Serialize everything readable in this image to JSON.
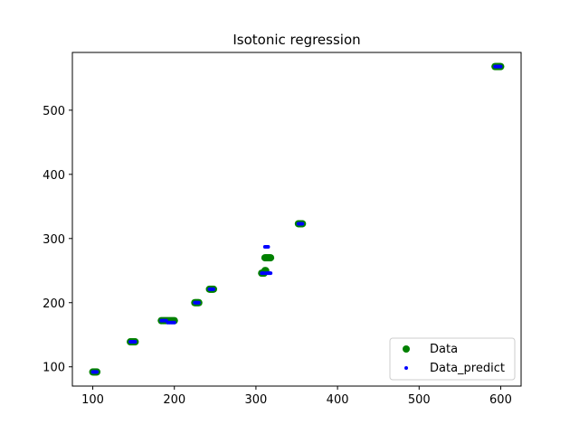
{
  "chart_data": {
    "type": "scatter",
    "title": "Isotonic regression",
    "xlabel": "",
    "ylabel": "",
    "xlim": [
      75,
      625
    ],
    "ylim": [
      70,
      590
    ],
    "x_ticks": [
      100,
      200,
      300,
      400,
      500,
      600
    ],
    "y_ticks": [
      100,
      200,
      300,
      400,
      500
    ],
    "grid": false,
    "legend_position": "bottom-right",
    "series": [
      {
        "name": "Data",
        "color": "#008000",
        "marker": "large-circle",
        "points": [
          [
            100,
            92
          ],
          [
            101,
            92
          ],
          [
            102,
            92
          ],
          [
            103,
            92
          ],
          [
            104,
            92
          ],
          [
            105,
            92
          ],
          [
            146,
            139
          ],
          [
            147,
            139
          ],
          [
            148,
            139
          ],
          [
            149,
            139
          ],
          [
            150,
            139
          ],
          [
            151,
            139
          ],
          [
            152,
            139
          ],
          [
            184,
            172
          ],
          [
            186,
            172
          ],
          [
            188,
            172
          ],
          [
            190,
            172
          ],
          [
            192,
            172
          ],
          [
            194,
            172
          ],
          [
            196,
            172
          ],
          [
            198,
            172
          ],
          [
            200,
            172
          ],
          [
            225,
            200
          ],
          [
            226,
            200
          ],
          [
            227,
            200
          ],
          [
            228,
            200
          ],
          [
            229,
            200
          ],
          [
            230,
            200
          ],
          [
            243,
            221
          ],
          [
            244,
            221
          ],
          [
            245,
            221
          ],
          [
            246,
            221
          ],
          [
            247,
            221
          ],
          [
            248,
            221
          ],
          [
            307,
            246
          ],
          [
            308,
            246
          ],
          [
            309,
            246
          ],
          [
            310,
            246
          ],
          [
            311,
            250
          ],
          [
            312,
            250
          ],
          [
            311,
            270
          ],
          [
            312,
            270
          ],
          [
            313,
            270
          ],
          [
            314,
            270
          ],
          [
            315,
            270
          ],
          [
            316,
            270
          ],
          [
            317,
            270
          ],
          [
            318,
            270
          ],
          [
            352,
            323
          ],
          [
            353,
            323
          ],
          [
            354,
            323
          ],
          [
            355,
            323
          ],
          [
            356,
            323
          ],
          [
            357,
            323
          ],
          [
            593,
            568
          ],
          [
            594,
            568
          ],
          [
            595,
            568
          ],
          [
            596,
            568
          ],
          [
            597,
            568
          ],
          [
            598,
            568
          ],
          [
            599,
            568
          ],
          [
            600,
            568
          ]
        ]
      },
      {
        "name": "Data_predict",
        "color": "#0000ff",
        "marker": "small-dot",
        "points": [
          [
            100,
            92
          ],
          [
            101,
            92
          ],
          [
            102,
            92
          ],
          [
            103,
            92
          ],
          [
            104,
            92
          ],
          [
            105,
            92
          ],
          [
            146,
            139
          ],
          [
            147,
            139
          ],
          [
            148,
            139
          ],
          [
            149,
            139
          ],
          [
            150,
            139
          ],
          [
            151,
            139
          ],
          [
            152,
            139
          ],
          [
            184,
            172
          ],
          [
            186,
            172
          ],
          [
            188,
            172
          ],
          [
            190,
            172
          ],
          [
            192,
            169
          ],
          [
            194,
            169
          ],
          [
            196,
            169
          ],
          [
            198,
            169
          ],
          [
            200,
            169
          ],
          [
            225,
            200
          ],
          [
            226,
            200
          ],
          [
            227,
            200
          ],
          [
            228,
            200
          ],
          [
            229,
            200
          ],
          [
            230,
            200
          ],
          [
            243,
            221
          ],
          [
            244,
            221
          ],
          [
            245,
            221
          ],
          [
            246,
            221
          ],
          [
            247,
            221
          ],
          [
            248,
            221
          ],
          [
            307,
            246
          ],
          [
            308,
            246
          ],
          [
            309,
            246
          ],
          [
            310,
            246
          ],
          [
            313,
            246
          ],
          [
            314,
            246
          ],
          [
            315,
            246
          ],
          [
            316,
            246
          ],
          [
            317,
            246
          ],
          [
            318,
            246
          ],
          [
            311,
            287
          ],
          [
            312,
            287
          ],
          [
            313,
            287
          ],
          [
            314,
            287
          ],
          [
            315,
            287
          ],
          [
            352,
            323
          ],
          [
            353,
            323
          ],
          [
            354,
            323
          ],
          [
            355,
            323
          ],
          [
            356,
            323
          ],
          [
            357,
            323
          ],
          [
            593,
            568
          ],
          [
            594,
            568
          ],
          [
            595,
            568
          ],
          [
            596,
            568
          ],
          [
            597,
            568
          ],
          [
            598,
            568
          ],
          [
            599,
            568
          ],
          [
            600,
            568
          ]
        ]
      }
    ]
  }
}
